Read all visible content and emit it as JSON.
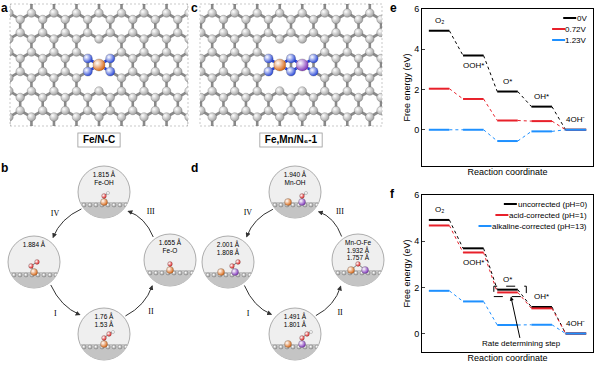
{
  "panels": [
    {
      "label": "a",
      "caption": "Fe/N-C"
    },
    {
      "label": "b",
      "steps": [
        "I",
        "II",
        "III",
        "IV"
      ],
      "states": [
        [
          "1.884 Å"
        ],
        [
          "1.76 Å",
          "1.53 Å"
        ],
        [
          "1.655 Å",
          "Fe-O"
        ],
        [
          "1.815 Å",
          "Fe-OH"
        ]
      ]
    },
    {
      "label": "c",
      "caption": "Fe,Mn/N₆-1"
    },
    {
      "label": "d",
      "steps": [
        "I",
        "II",
        "III",
        "IV"
      ],
      "states": [
        [
          "2.001 Å",
          "1.808 Å"
        ],
        [
          "1.491 Å",
          "1.801 Å"
        ],
        [
          "Mn-O-Fe",
          "1.932 Å",
          "1.757 Å"
        ],
        [
          "1.940 Å",
          "Mn-OH"
        ]
      ]
    }
  ],
  "chart_data": [
    {
      "label": "e",
      "type": "line",
      "categories": [
        "O₂",
        "OOH*",
        "O*",
        "OH*",
        "4OH⁻"
      ],
      "series": [
        {
          "name": "0V",
          "color": "#000000",
          "values": [
            4.92,
            3.69,
            1.9,
            1.15,
            0
          ]
        },
        {
          "name": "0.72V",
          "color": "#e8202a",
          "values": [
            2.04,
            1.53,
            0.46,
            0.43,
            0
          ]
        },
        {
          "name": "1.23V",
          "color": "#1e90ff",
          "values": [
            0,
            0,
            -0.56,
            -0.08,
            0
          ]
        }
      ],
      "y_label": "Free energy (eV)",
      "x_label": "Reaction coordinate",
      "ylim": [
        -1.8,
        6
      ],
      "yticks": [
        0,
        2,
        4,
        6
      ],
      "legend": "upper right",
      "tick_labels": "y"
    },
    {
      "label": "f",
      "type": "line",
      "categories": [
        "O₂",
        "OOH*",
        "O*",
        "OH*",
        "4OH⁻"
      ],
      "series": [
        {
          "name": "uncorrected (pH=0)",
          "color": "#000000",
          "values": [
            4.92,
            3.69,
            1.9,
            1.15,
            0
          ]
        },
        {
          "name": "acid-corrected (pH=1)",
          "color": "#e8202a",
          "values": [
            4.68,
            3.51,
            1.78,
            1.09,
            0
          ]
        },
        {
          "name": "alkaline-corrected (pH=13)",
          "color": "#1e90ff",
          "values": [
            1.85,
            1.39,
            0.37,
            0.38,
            0
          ]
        }
      ],
      "y_label": "Free energy (eV)",
      "x_label": "Reaction coordinate",
      "ylim": [
        -0.8,
        6
      ],
      "yticks": [
        0,
        2,
        4,
        6
      ],
      "legend": "upper right",
      "tick_labels": "y",
      "annotations": [
        {
          "text": "Rate determining step",
          "category": "O*"
        }
      ]
    }
  ]
}
